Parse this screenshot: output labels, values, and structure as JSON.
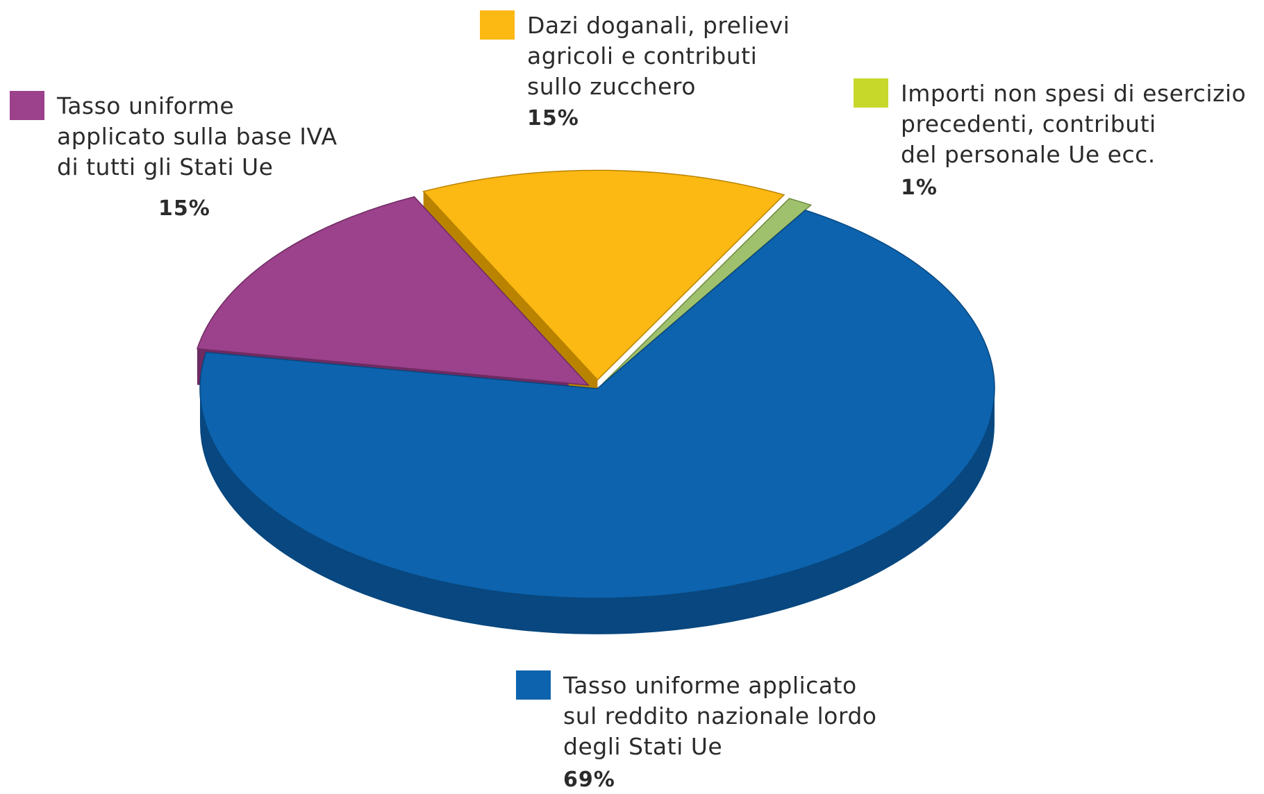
{
  "chart_data": {
    "type": "pie",
    "style": "3d-exploded",
    "legend_position": "around",
    "slices": [
      {
        "id": "tax-gni",
        "label_lines": [
          "Tasso uniforme applicato",
          "sul reddito nazionale lordo",
          "degli Stati Ue"
        ],
        "percent_label": "69%",
        "value": 69,
        "color": "#0d63ad",
        "side_color": "#08477f"
      },
      {
        "id": "tax-vat",
        "label_lines": [
          "Tasso uniforme",
          "applicato sulla base IVA",
          "di tutti gli Stati Ue"
        ],
        "percent_label": "15%",
        "value": 15,
        "color": "#9c418b",
        "side_color": "#6e2b62"
      },
      {
        "id": "customs",
        "label_lines": [
          "Dazi doganali, prelievi",
          "agricoli e contributi",
          "sullo zucchero"
        ],
        "percent_label": "15%",
        "value": 15,
        "color": "#fcb813",
        "side_color": "#b98300"
      },
      {
        "id": "other",
        "label_lines": [
          "Importi non spesi di esercizio",
          "precedenti, contributi",
          "del personale Ue ecc."
        ],
        "percent_label": "1%",
        "value": 1,
        "color": "#9fc06d",
        "side_color": "#6d8c40",
        "legend_color": "#c8d82b"
      }
    ]
  }
}
